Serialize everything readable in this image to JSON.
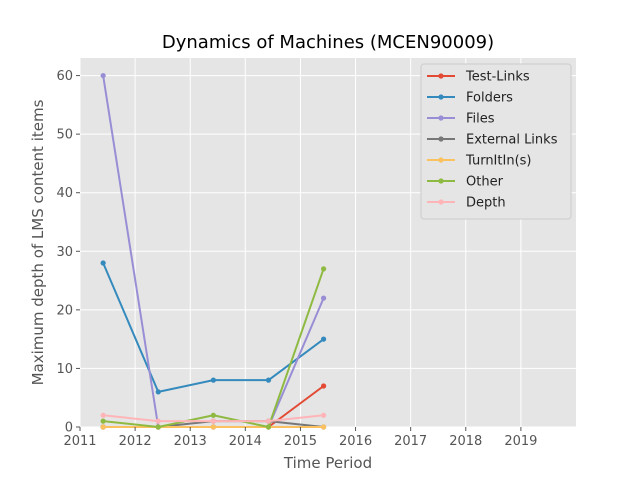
{
  "chart_data": {
    "type": "line",
    "title": "Dynamics of Machines (MCEN90009)",
    "xlabel": "Time Period",
    "ylabel": "Maximum depth of LMS content items",
    "xlim": [
      2011,
      2020
    ],
    "ylim": [
      0,
      63
    ],
    "x_ticks": [
      2011,
      2012,
      2013,
      2014,
      2015,
      2016,
      2017,
      2018,
      2019
    ],
    "x_tick_labels": [
      "2011",
      "2012",
      "2013",
      "2014",
      "2015",
      "2016",
      "2017",
      "2018",
      "2019"
    ],
    "y_ticks": [
      0,
      10,
      20,
      30,
      40,
      50,
      60
    ],
    "y_tick_labels": [
      "0",
      "10",
      "20",
      "30",
      "40",
      "50",
      "60"
    ],
    "grid": true,
    "legend_position": "top-right",
    "x": [
      2011.42,
      2012.42,
      2013.42,
      2014.42,
      2015.42
    ],
    "series": [
      {
        "name": "Test-Links",
        "color": "#E24A33",
        "values": [
          0,
          0,
          0,
          0,
          7
        ]
      },
      {
        "name": "Folders",
        "color": "#348ABD",
        "values": [
          28,
          6,
          8,
          8,
          15
        ]
      },
      {
        "name": "Files",
        "color": "#988ED5",
        "values": [
          60,
          0,
          0,
          0,
          22
        ]
      },
      {
        "name": "External Links",
        "color": "#777777",
        "values": [
          0,
          0,
          1,
          1,
          0
        ]
      },
      {
        "name": "TurnItIn(s)",
        "color": "#FBC15E",
        "values": [
          0,
          0,
          0,
          0,
          0
        ]
      },
      {
        "name": "Other",
        "color": "#8EBA42",
        "values": [
          1,
          0,
          2,
          0,
          27
        ]
      },
      {
        "name": "Depth",
        "color": "#FFB5B8",
        "values": [
          2,
          1,
          1,
          1,
          2
        ]
      }
    ]
  }
}
